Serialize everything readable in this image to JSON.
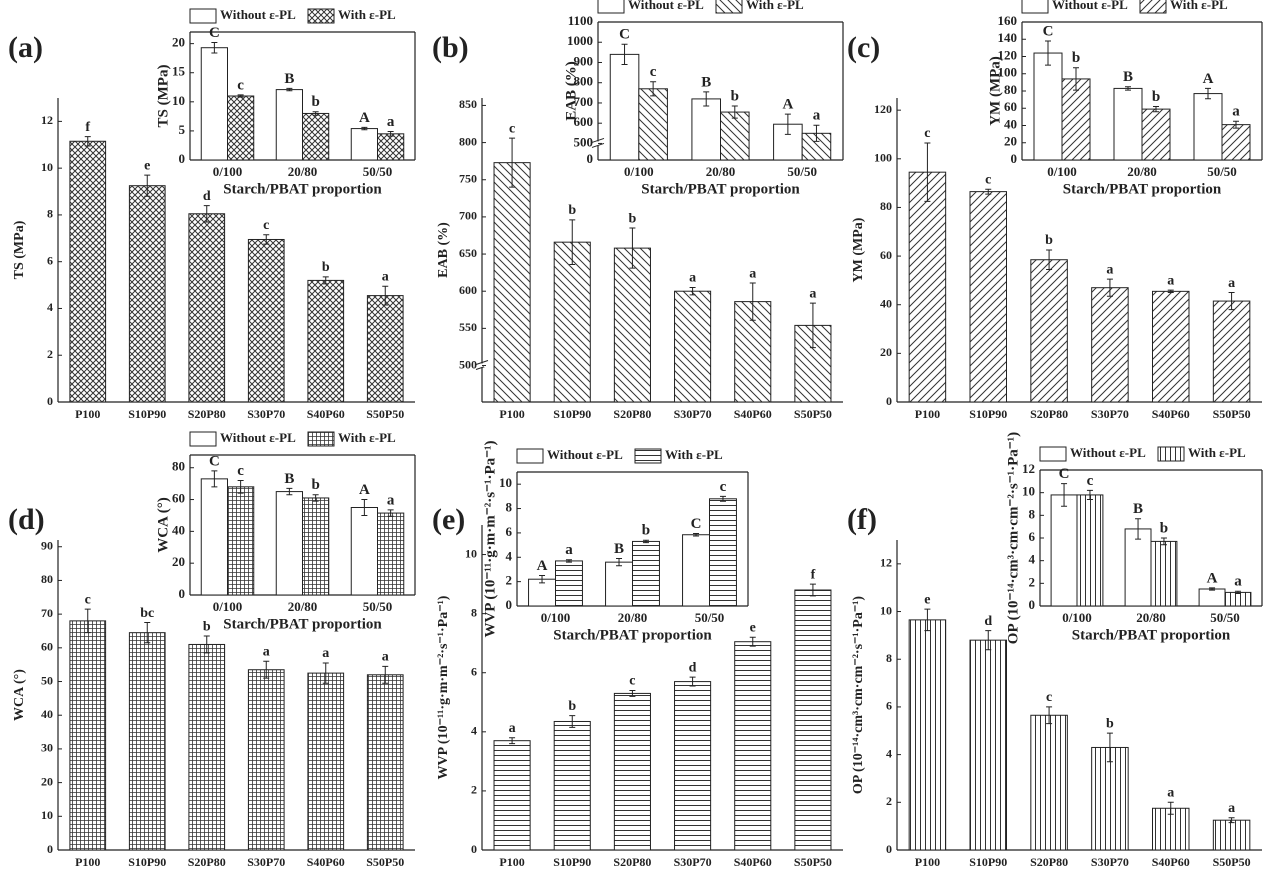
{
  "chart_data": [
    {
      "type": "bar",
      "panel": "(a)",
      "ylabel": "TS (MPa)",
      "categories": [
        "P100",
        "S10P90",
        "S20P80",
        "S30P70",
        "S40P60",
        "S50P50"
      ],
      "values": [
        11.15,
        9.25,
        8.05,
        6.95,
        5.2,
        4.55
      ],
      "errors": [
        0.2,
        0.45,
        0.35,
        0.2,
        0.15,
        0.4
      ],
      "letters": [
        "f",
        "e",
        "d",
        "c",
        "b",
        "a"
      ],
      "pattern": "cross",
      "ylim": [
        0,
        13
      ],
      "yticks": [
        0,
        2,
        4,
        6,
        8,
        10,
        12
      ]
    },
    {
      "type": "grouped-bar",
      "ylabel": "TS (MPa)",
      "xlabel": "Starch/PBAT proportion",
      "categories": [
        "0/100",
        "20/80",
        "50/50"
      ],
      "series": [
        {
          "name": "Without ε-PL",
          "pattern": "none",
          "values": [
            19.3,
            12.1,
            5.4
          ],
          "errors": [
            0.9,
            0.2,
            0.2
          ],
          "letters": [
            "C",
            "B",
            "A"
          ]
        },
        {
          "name": "With ε-PL",
          "pattern": "cross",
          "values": [
            11.0,
            8.0,
            4.5
          ],
          "errors": [
            0.2,
            0.3,
            0.4
          ],
          "letters": [
            "c",
            "b",
            "a"
          ]
        }
      ],
      "ylim": [
        0,
        22
      ],
      "yticks": [
        0,
        5,
        10,
        15,
        20
      ]
    },
    {
      "type": "bar",
      "panel": "(b)",
      "ylabel": "EAB (%)",
      "categories": [
        "P100",
        "S10P90",
        "S20P80",
        "S30P70",
        "S40P60",
        "S50P50"
      ],
      "values": [
        773,
        666,
        658,
        600,
        586,
        554
      ],
      "errors": [
        33,
        30,
        27,
        5,
        25,
        30
      ],
      "letters": [
        "c",
        "b",
        "b",
        "a",
        "a",
        "a"
      ],
      "pattern": "back",
      "ylim": [
        480,
        860
      ],
      "ybreak": 500,
      "yticks": [
        500,
        550,
        600,
        650,
        700,
        750,
        800,
        850
      ]
    },
    {
      "type": "grouped-bar",
      "ylabel": "EAB (%)",
      "xlabel": "Starch/PBAT proportion",
      "categories": [
        "0/100",
        "20/80",
        "50/50"
      ],
      "series": [
        {
          "name": "Without ε-PL",
          "pattern": "none",
          "values": [
            940,
            720,
            595
          ],
          "errors": [
            50,
            35,
            50
          ],
          "letters": [
            "C",
            "B",
            "A"
          ]
        },
        {
          "name": "With ε-PL",
          "pattern": "back",
          "values": [
            770,
            655,
            550
          ],
          "errors": [
            35,
            30,
            40
          ],
          "letters": [
            "c",
            "b",
            "a"
          ]
        }
      ],
      "ylim": [
        0,
        1100
      ],
      "ybreak": 500,
      "yticks": [
        0,
        500,
        600,
        700,
        800,
        900,
        1000,
        1100
      ]
    },
    {
      "type": "bar",
      "panel": "(c)",
      "ylabel": "YM (MPa)",
      "categories": [
        "P100",
        "S10P90",
        "S20P80",
        "S30P70",
        "S40P60",
        "S50P50"
      ],
      "values": [
        94.5,
        86.5,
        58.5,
        47,
        45.5,
        41.5
      ],
      "errors": [
        12,
        1,
        4,
        3.5,
        0.5,
        3.5
      ],
      "letters": [
        "c",
        "c",
        "b",
        "a",
        "a",
        "a"
      ],
      "pattern": "fwd",
      "ylim": [
        0,
        125
      ],
      "yticks": [
        0,
        20,
        40,
        60,
        80,
        100,
        120
      ]
    },
    {
      "type": "grouped-bar",
      "ylabel": "YM (MPa)",
      "xlabel": "Starch/PBAT proportion",
      "categories": [
        "0/100",
        "20/80",
        "50/50"
      ],
      "series": [
        {
          "name": "Without ε-PL",
          "pattern": "none",
          "values": [
            124,
            83,
            77
          ],
          "errors": [
            14,
            2,
            6
          ],
          "letters": [
            "C",
            "B",
            "A"
          ]
        },
        {
          "name": "With ε-PL",
          "pattern": "fwd",
          "values": [
            94,
            59,
            41
          ],
          "errors": [
            13,
            3,
            4
          ],
          "letters": [
            "b",
            "b",
            "a"
          ]
        }
      ],
      "ylim": [
        0,
        160
      ],
      "yticks": [
        0,
        20,
        40,
        60,
        80,
        100,
        120,
        140,
        160
      ]
    },
    {
      "type": "bar",
      "panel": "(d)",
      "ylabel": "WCA (°)",
      "categories": [
        "P100",
        "S10P90",
        "S20P80",
        "S30P70",
        "S40P60",
        "S50P50"
      ],
      "values": [
        68,
        64.5,
        61,
        53.5,
        52.5,
        52
      ],
      "errors": [
        3.5,
        3,
        2.5,
        2.5,
        3,
        2.5
      ],
      "letters": [
        "c",
        "bc",
        "b",
        "a",
        "a",
        "a"
      ],
      "pattern": "grid",
      "ylim": [
        0,
        92
      ],
      "yticks": [
        0,
        10,
        20,
        30,
        40,
        50,
        60,
        70,
        80,
        90
      ]
    },
    {
      "type": "grouped-bar",
      "ylabel": "WCA (°)",
      "xlabel": "Starch/PBAT proportion",
      "categories": [
        "0/100",
        "20/80",
        "50/50"
      ],
      "series": [
        {
          "name": "Without ε-PL",
          "pattern": "none",
          "values": [
            73,
            65,
            55
          ],
          "errors": [
            5,
            2,
            5
          ],
          "letters": [
            "C",
            "B",
            "A"
          ]
        },
        {
          "name": "With ε-PL",
          "pattern": "grid",
          "values": [
            68,
            61,
            51.5
          ],
          "errors": [
            4,
            2,
            2
          ],
          "letters": [
            "c",
            "b",
            "a"
          ]
        }
      ],
      "ylim": [
        0,
        88
      ],
      "yticks": [
        0,
        20,
        40,
        60,
        80
      ]
    },
    {
      "type": "bar",
      "panel": "(e)",
      "ylabel": "WVP (10⁻¹¹·g·m·m⁻²·s⁻¹·Pa⁻¹)",
      "categories": [
        "P100",
        "S10P90",
        "S20P80",
        "S30P70",
        "S40P60",
        "S50P50"
      ],
      "values": [
        3.7,
        4.35,
        5.3,
        5.7,
        7.05,
        8.8
      ],
      "errors": [
        0.1,
        0.2,
        0.1,
        0.15,
        0.15,
        0.2
      ],
      "letters": [
        "a",
        "b",
        "c",
        "d",
        "e",
        "f"
      ],
      "pattern": "horiz",
      "ylim": [
        0,
        11
      ],
      "yticks": [
        0,
        2,
        4,
        6,
        8,
        10
      ]
    },
    {
      "type": "grouped-bar",
      "ylabel": "WVP (10⁻¹¹·g·m·m⁻²·s⁻¹·Pa⁻¹)",
      "xlabel": "Starch/PBAT proportion",
      "categories": [
        "0/100",
        "20/80",
        "50/50"
      ],
      "series": [
        {
          "name": "Without ε-PL",
          "pattern": "none",
          "values": [
            2.2,
            3.6,
            5.85
          ],
          "errors": [
            0.3,
            0.3,
            0.1
          ],
          "letters": [
            "A",
            "B",
            "C"
          ]
        },
        {
          "name": "With ε-PL",
          "pattern": "horiz",
          "values": [
            3.7,
            5.3,
            8.8
          ],
          "errors": [
            0.1,
            0.1,
            0.2
          ],
          "letters": [
            "a",
            "b",
            "c"
          ]
        }
      ],
      "ylim": [
        0,
        11
      ],
      "yticks": [
        0,
        2,
        4,
        6,
        8,
        10
      ]
    },
    {
      "type": "bar",
      "panel": "(f)",
      "ylabel": "OP (10⁻¹⁴·cm³·cm·cm⁻²·s⁻¹·Pa⁻¹)",
      "categories": [
        "P100",
        "S10P90",
        "S20P80",
        "S30P70",
        "S40P60",
        "S50P50"
      ],
      "values": [
        9.65,
        8.8,
        5.65,
        4.3,
        1.75,
        1.25
      ],
      "errors": [
        0.45,
        0.4,
        0.35,
        0.6,
        0.25,
        0.1
      ],
      "letters": [
        "e",
        "d",
        "c",
        "b",
        "a",
        "a"
      ],
      "pattern": "vert",
      "ylim": [
        0,
        13
      ],
      "yticks": [
        0,
        2,
        4,
        6,
        8,
        10,
        12
      ]
    },
    {
      "type": "grouped-bar",
      "ylabel": "OP (10⁻¹⁴·cm³·cm·cm⁻²·s⁻¹·Pa⁻¹)",
      "xlabel": "Starch/PBAT proportion",
      "categories": [
        "0/100",
        "20/80",
        "50/50"
      ],
      "series": [
        {
          "name": "Without ε-PL",
          "pattern": "none",
          "values": [
            9.8,
            6.8,
            1.5
          ],
          "errors": [
            1,
            0.9,
            0.1
          ],
          "letters": [
            "C",
            "B",
            "A"
          ]
        },
        {
          "name": "With ε-PL",
          "pattern": "vert",
          "values": [
            9.8,
            5.7,
            1.2
          ],
          "errors": [
            0.4,
            0.3,
            0.1
          ],
          "letters": [
            "c",
            "b",
            "a"
          ]
        }
      ],
      "ylim": [
        0,
        12
      ],
      "yticks": [
        0,
        2,
        4,
        6,
        8,
        10,
        12
      ]
    }
  ]
}
